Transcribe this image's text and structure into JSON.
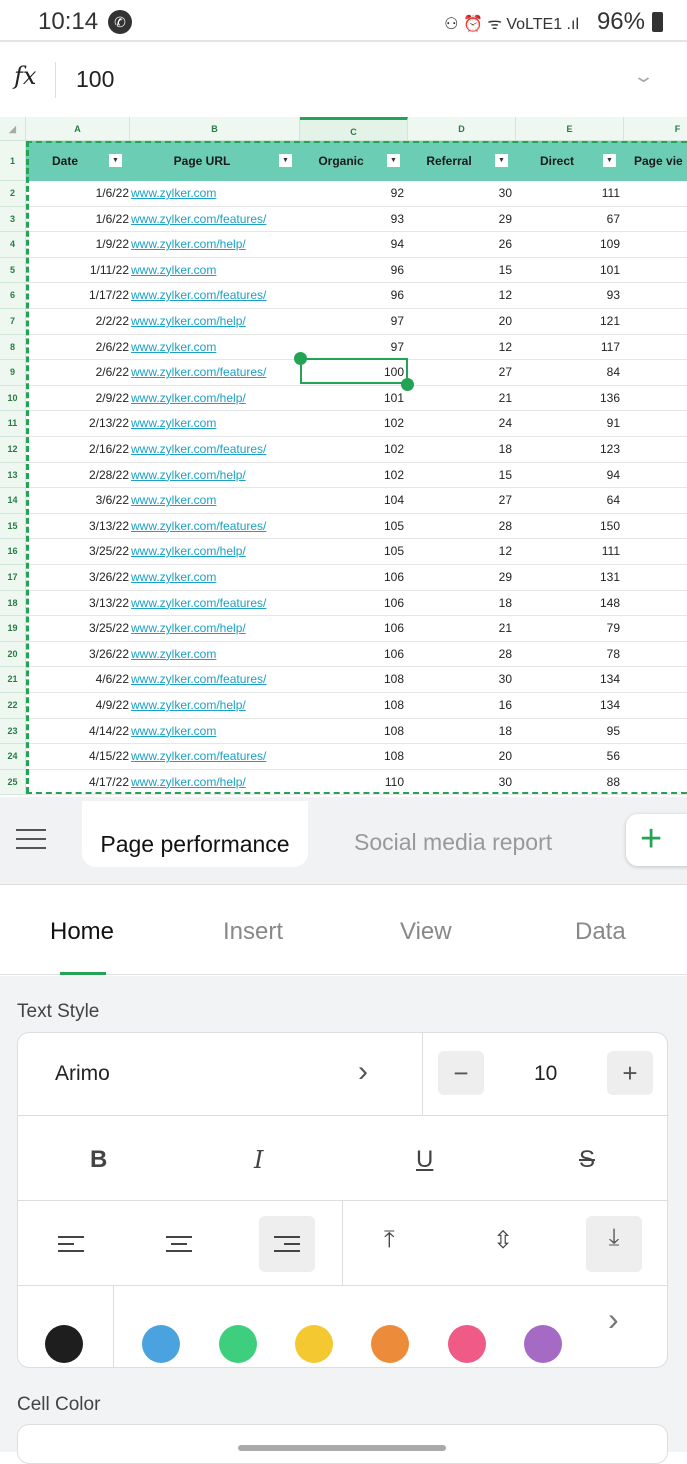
{
  "status_bar": {
    "time": "10:14",
    "indicators": "⚇ ⏰ ᯤ VoLTE1 .ıl",
    "battery": "96%"
  },
  "formula_bar": {
    "fx_label": "fx",
    "value": "100"
  },
  "grid": {
    "columns": [
      "A",
      "B",
      "C",
      "D",
      "E",
      "F"
    ],
    "selected_column": "C",
    "headers": [
      "Date",
      "Page URL",
      "Organic",
      "Referral",
      "Direct",
      "Page vie"
    ],
    "selected_cell": "C9",
    "rows": [
      [
        "1/6/22",
        "www.zylker.com",
        "92",
        "30",
        "111"
      ],
      [
        "1/6/22",
        "www.zylker.com/features/",
        "93",
        "29",
        "67"
      ],
      [
        "1/9/22",
        "www.zylker.com/help/",
        "94",
        "26",
        "109"
      ],
      [
        "1/11/22",
        "www.zylker.com",
        "96",
        "15",
        "101"
      ],
      [
        "1/17/22",
        "www.zylker.com/features/",
        "96",
        "12",
        "93"
      ],
      [
        "2/2/22",
        "www.zylker.com/help/",
        "97",
        "20",
        "121"
      ],
      [
        "2/6/22",
        "www.zylker.com",
        "97",
        "12",
        "117"
      ],
      [
        "2/6/22",
        "www.zylker.com/features/",
        "100",
        "27",
        "84"
      ],
      [
        "2/9/22",
        "www.zylker.com/help/",
        "101",
        "21",
        "136"
      ],
      [
        "2/13/22",
        "www.zylker.com",
        "102",
        "24",
        "91"
      ],
      [
        "2/16/22",
        "www.zylker.com/features/",
        "102",
        "18",
        "123"
      ],
      [
        "2/28/22",
        "www.zylker.com/help/",
        "102",
        "15",
        "94"
      ],
      [
        "3/6/22",
        "www.zylker.com",
        "104",
        "27",
        "64"
      ],
      [
        "3/13/22",
        "www.zylker.com/features/",
        "105",
        "28",
        "150"
      ],
      [
        "3/25/22",
        "www.zylker.com/help/",
        "105",
        "12",
        "111"
      ],
      [
        "3/26/22",
        "www.zylker.com",
        "106",
        "29",
        "131"
      ],
      [
        "3/13/22",
        "www.zylker.com/features/",
        "106",
        "18",
        "148"
      ],
      [
        "3/25/22",
        "www.zylker.com/help/",
        "106",
        "21",
        "79"
      ],
      [
        "3/26/22",
        "www.zylker.com",
        "106",
        "28",
        "78"
      ],
      [
        "4/6/22",
        "www.zylker.com/features/",
        "108",
        "30",
        "134"
      ],
      [
        "4/9/22",
        "www.zylker.com/help/",
        "108",
        "16",
        "134"
      ],
      [
        "4/14/22",
        "www.zylker.com",
        "108",
        "18",
        "95"
      ],
      [
        "4/15/22",
        "www.zylker.com/features/",
        "108",
        "20",
        "56"
      ],
      [
        "4/17/22",
        "www.zylker.com/help/",
        "110",
        "30",
        "88"
      ]
    ]
  },
  "sheets": {
    "tabs": [
      "Page performance",
      "Social media report"
    ],
    "active": "Page performance",
    "add_label": "+"
  },
  "ribbon": {
    "tabs": [
      "Home",
      "Insert",
      "View",
      "Data"
    ],
    "active": "Home"
  },
  "text_style": {
    "label": "Text Style",
    "font": "Arimo",
    "font_size": "10",
    "minus": "−",
    "plus": "+",
    "bold": "B",
    "italic": "I",
    "underline": "U",
    "strike": "S",
    "more": "›"
  },
  "colors": [
    "#1e1e1e",
    "#4aa3df",
    "#3ecf7e",
    "#f4c830",
    "#ec8c3a",
    "#ef5a86",
    "#a56bc4"
  ],
  "cell_color": {
    "label": "Cell Color"
  }
}
